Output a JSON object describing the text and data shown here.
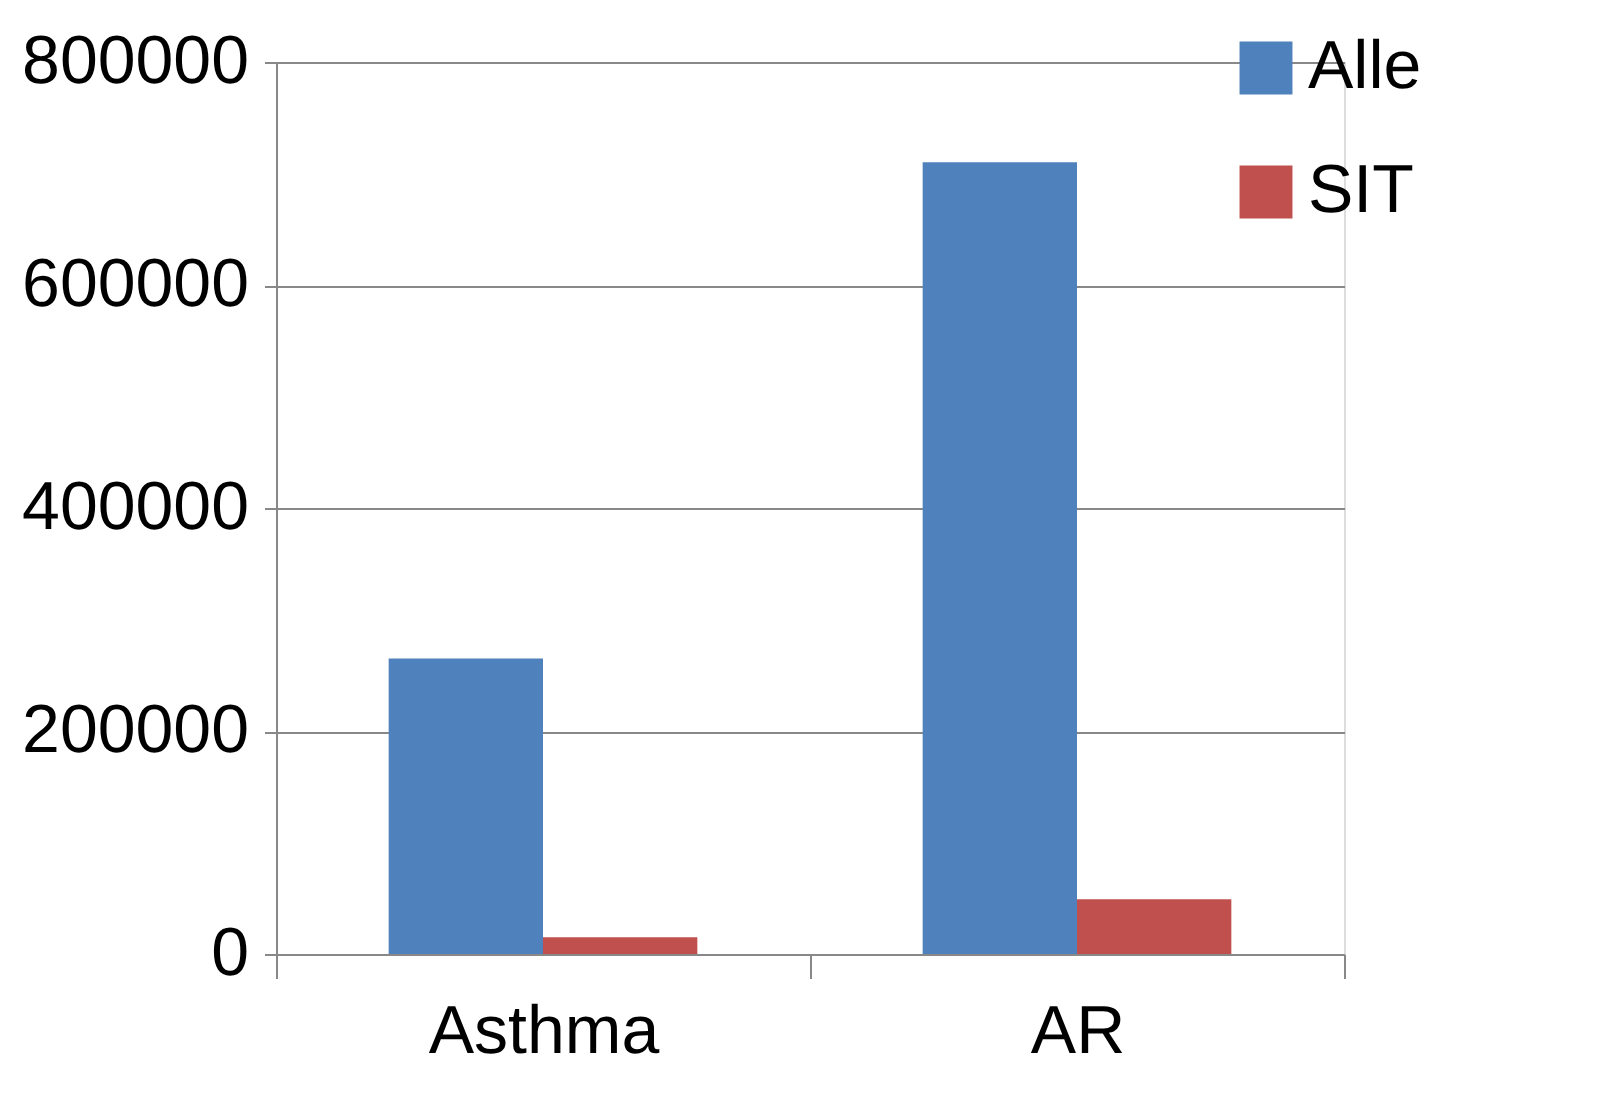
{
  "chart_data": {
    "type": "bar",
    "categories": [
      "Asthma",
      "AR"
    ],
    "series": [
      {
        "name": "Alle",
        "color": "#4f81bd",
        "values": [
          265000,
          710000
        ]
      },
      {
        "name": "SIT",
        "color": "#c0504d",
        "values": [
          15000,
          49000
        ]
      }
    ],
    "ylim": [
      0,
      800000
    ],
    "yticks": [
      0,
      200000,
      400000,
      600000,
      800000
    ],
    "grid": "y",
    "legend": "top right"
  }
}
